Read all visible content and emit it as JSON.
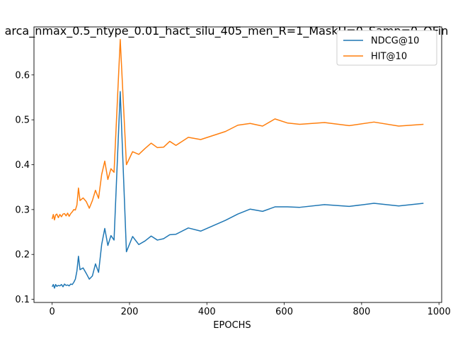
{
  "chart_data": {
    "type": "line",
    "title": "arca_nmax_0.5_ntype_0.01_hact_silu_405_men_R=1_MaskU=0_Samp=0_OFin",
    "xlabel": "EPOCHS",
    "ylabel": "",
    "xlim": [
      -47,
      1007
    ],
    "ylim": [
      0.093,
      0.707
    ],
    "xticks": [
      0,
      200,
      400,
      600,
      800,
      1000
    ],
    "yticks": [
      0.1,
      0.2,
      0.3,
      0.4,
      0.5,
      0.6
    ],
    "grid": false,
    "legend_position": "top-right",
    "x": [
      0,
      3,
      6,
      9,
      12,
      16,
      20,
      24,
      28,
      32,
      36,
      40,
      44,
      48,
      52,
      56,
      60,
      64,
      68,
      72,
      80,
      88,
      96,
      104,
      112,
      120,
      128,
      136,
      144,
      152,
      160,
      176,
      192,
      208,
      224,
      240,
      256,
      272,
      288,
      304,
      320,
      352,
      384,
      448,
      480,
      512,
      544,
      576,
      608,
      640,
      704,
      768,
      832,
      896,
      960
    ],
    "series": [
      {
        "name": "NDCG@10",
        "color": "#1f77b4",
        "values": [
          0.128,
          0.133,
          0.125,
          0.133,
          0.129,
          0.131,
          0.13,
          0.133,
          0.128,
          0.134,
          0.131,
          0.132,
          0.13,
          0.134,
          0.133,
          0.138,
          0.145,
          0.163,
          0.196,
          0.166,
          0.17,
          0.158,
          0.145,
          0.152,
          0.179,
          0.16,
          0.222,
          0.258,
          0.22,
          0.242,
          0.232,
          0.563,
          0.206,
          0.24,
          0.222,
          0.23,
          0.241,
          0.232,
          0.235,
          0.244,
          0.245,
          0.259,
          0.252,
          0.276,
          0.29,
          0.301,
          0.296,
          0.306,
          0.306,
          0.305,
          0.311,
          0.307,
          0.314,
          0.308,
          0.314
        ]
      },
      {
        "name": "HIT@10",
        "color": "#ff7f0e",
        "values": [
          0.279,
          0.289,
          0.277,
          0.288,
          0.29,
          0.282,
          0.289,
          0.284,
          0.29,
          0.291,
          0.286,
          0.292,
          0.285,
          0.291,
          0.295,
          0.3,
          0.299,
          0.31,
          0.348,
          0.32,
          0.326,
          0.318,
          0.303,
          0.32,
          0.343,
          0.325,
          0.378,
          0.408,
          0.367,
          0.391,
          0.383,
          0.679,
          0.4,
          0.429,
          0.423,
          0.436,
          0.448,
          0.438,
          0.439,
          0.452,
          0.443,
          0.461,
          0.456,
          0.474,
          0.488,
          0.492,
          0.486,
          0.502,
          0.493,
          0.49,
          0.494,
          0.487,
          0.495,
          0.486,
          0.49
        ]
      }
    ]
  }
}
